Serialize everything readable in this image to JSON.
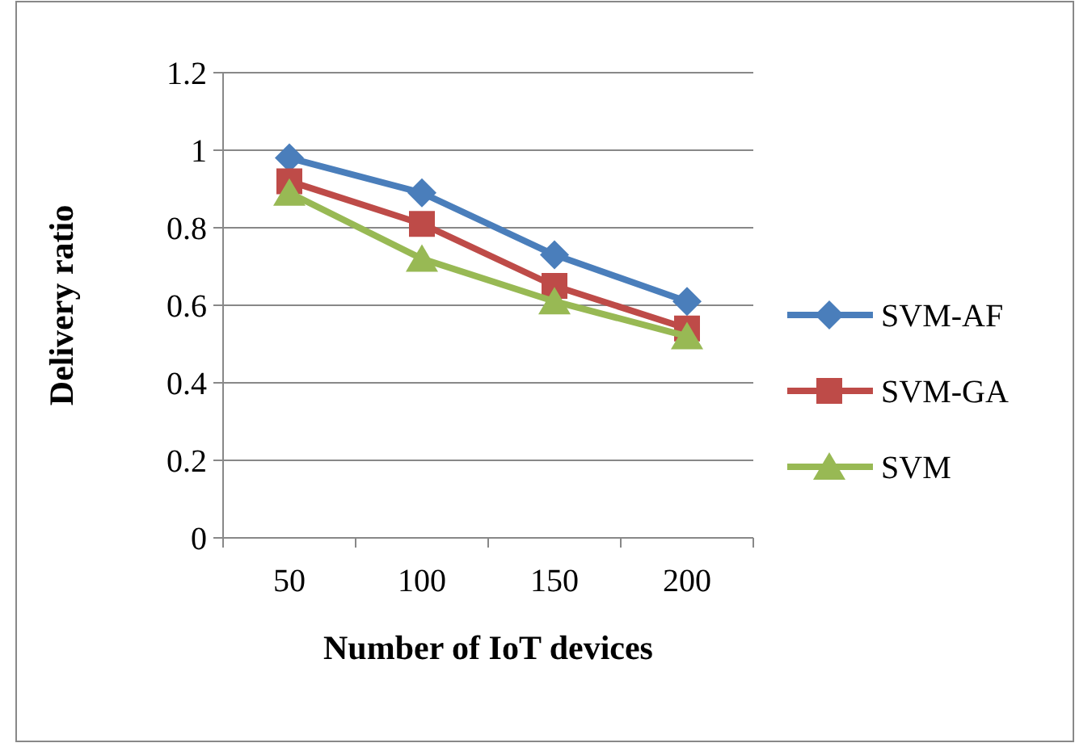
{
  "chart_data": {
    "type": "line",
    "xlabel": "Number of IoT devices",
    "ylabel": "Delivery ratio",
    "categories": [
      "50",
      "100",
      "150",
      "200"
    ],
    "series": [
      {
        "name": "SVM-AF",
        "color": "#4a7ebb",
        "marker": "diamond",
        "values": [
          0.98,
          0.89,
          0.73,
          0.61
        ]
      },
      {
        "name": "SVM-GA",
        "color": "#be4b48",
        "marker": "square",
        "values": [
          0.92,
          0.81,
          0.65,
          0.54
        ]
      },
      {
        "name": "SVM",
        "color": "#98b954",
        "marker": "triangle",
        "values": [
          0.89,
          0.72,
          0.61,
          0.52
        ]
      }
    ],
    "ylim": [
      0,
      1.2
    ],
    "yticks": [
      0,
      0.2,
      0.4,
      0.6,
      0.8,
      1,
      1.2
    ],
    "grid": "y",
    "legend": "right"
  }
}
